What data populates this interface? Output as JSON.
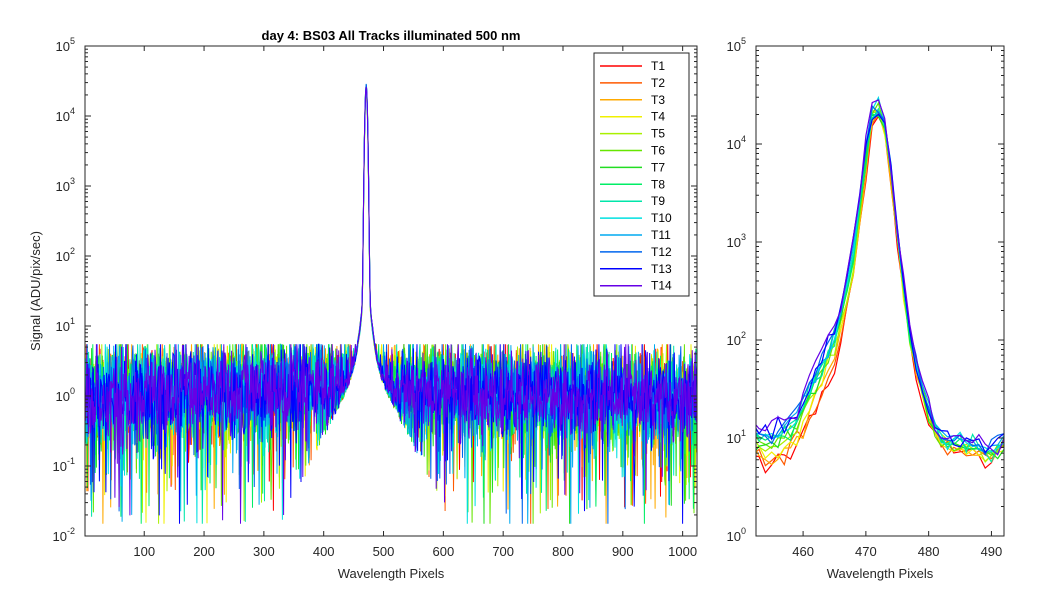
{
  "chart_data": [
    {
      "type": "line",
      "title": "day 4: BS03   All Tracks illuminated   500 nm",
      "xlabel": "Wavelength Pixels",
      "ylabel": "Signal (ADU/pix/sec)",
      "xlim": [
        1,
        1024
      ],
      "ylim": [
        0.01,
        100000
      ],
      "yscale": "log",
      "xticks": [
        "100",
        "200",
        "300",
        "400",
        "500",
        "600",
        "700",
        "800",
        "900",
        "1000"
      ],
      "yticks": [
        {
          "base": "10",
          "exp": "-2"
        },
        {
          "base": "10",
          "exp": "-1"
        },
        {
          "base": "10",
          "exp": "0"
        },
        {
          "base": "10",
          "exp": "1"
        },
        {
          "base": "10",
          "exp": "2"
        },
        {
          "base": "10",
          "exp": "3"
        },
        {
          "base": "10",
          "exp": "4"
        },
        {
          "base": "10",
          "exp": "5"
        }
      ],
      "legend_position": "top-right",
      "peak": {
        "x": 471,
        "y": 25000
      },
      "background_level": 1.0,
      "series": [
        {
          "name": "T1",
          "color": "#ff0000"
        },
        {
          "name": "T2",
          "color": "#ff5a00"
        },
        {
          "name": "T3",
          "color": "#ffaa00"
        },
        {
          "name": "T4",
          "color": "#f0f000"
        },
        {
          "name": "T5",
          "color": "#aaf000"
        },
        {
          "name": "T6",
          "color": "#66e600"
        },
        {
          "name": "T7",
          "color": "#22dd22"
        },
        {
          "name": "T8",
          "color": "#00ee66"
        },
        {
          "name": "T9",
          "color": "#00e6aa"
        },
        {
          "name": "T10",
          "color": "#00e0e0"
        },
        {
          "name": "T11",
          "color": "#00aaf0"
        },
        {
          "name": "T12",
          "color": "#0066ee"
        },
        {
          "name": "T13",
          "color": "#0000ff"
        },
        {
          "name": "T14",
          "color": "#6600e6"
        }
      ]
    },
    {
      "type": "line",
      "title": "",
      "xlabel": "Wavelength Pixels",
      "ylabel": "",
      "xlim": [
        452.5,
        492
      ],
      "ylim": [
        1,
        100000
      ],
      "yscale": "log",
      "xticks": [
        "460",
        "470",
        "480",
        "490"
      ],
      "yticks": [
        {
          "base": "10",
          "exp": "0"
        },
        {
          "base": "10",
          "exp": "1"
        },
        {
          "base": "10",
          "exp": "2"
        },
        {
          "base": "10",
          "exp": "3"
        },
        {
          "base": "10",
          "exp": "4"
        },
        {
          "base": "10",
          "exp": "5"
        }
      ],
      "x": [
        452,
        453,
        454,
        455,
        456,
        457,
        458,
        459,
        460,
        461,
        462,
        463,
        464,
        465,
        466,
        467,
        468,
        469,
        470,
        471,
        472,
        473,
        474,
        475,
        476,
        477,
        478,
        479,
        480,
        481,
        482,
        483,
        484,
        485,
        486,
        487,
        488,
        489,
        490,
        491,
        492
      ],
      "profile": [
        10,
        9,
        8,
        8,
        9,
        10,
        11,
        13,
        18,
        25,
        34,
        45,
        62,
        90,
        150,
        300,
        700,
        2000,
        7000,
        18000,
        22000,
        15000,
        5000,
        1200,
        350,
        120,
        55,
        30,
        18,
        12,
        10,
        9,
        9,
        9,
        8,
        8,
        8,
        7,
        7,
        8,
        9
      ]
    }
  ]
}
